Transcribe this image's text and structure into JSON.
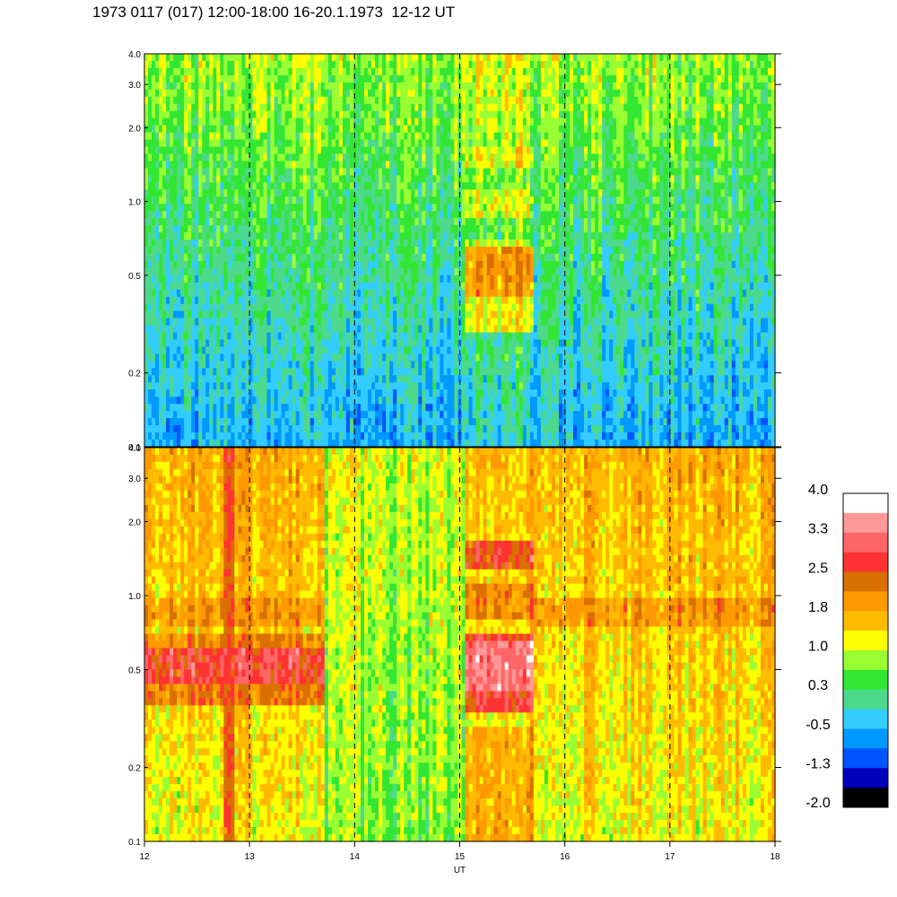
{
  "title": "1973 0117 (017) 12:00-18:00 16-20.1.1973  12-12 UT",
  "chart_data": {
    "type": "heatmap",
    "x_label": "UT",
    "x_ticks": [
      "12",
      "13",
      "14",
      "15",
      "16",
      "17",
      "18"
    ],
    "xlim": [
      12,
      18
    ],
    "dashed_vertical_lines_at": [
      13,
      14,
      15,
      16,
      17
    ],
    "y_scale": "log",
    "ylim": [
      0.1,
      4.0
    ],
    "y_ticks": [
      "0.1",
      "0.2",
      "0.5",
      "1.0",
      "2.0",
      "3.0",
      "4.0"
    ],
    "y_tick_values": [
      0.1,
      0.2,
      0.5,
      1.0,
      2.0,
      3.0,
      4.0
    ],
    "panels": [
      {
        "name": "upper",
        "background_level": "low (blue-green)",
        "features": [
          {
            "x_start": 15.05,
            "x_end": 15.7,
            "y_band": [
              0.3,
              1.7
            ],
            "note": "bright bands at ~0.5, ~1.0, ~1.5"
          }
        ]
      },
      {
        "name": "lower",
        "background_level": "high (yellow-orange)",
        "features": [
          {
            "x_start": 12.0,
            "x_end": 13.7,
            "y_band": [
              0.35,
              0.95
            ],
            "note": "red band centered ~0.5"
          },
          {
            "x_start": 12.75,
            "x_end": 12.85,
            "y_band": [
              0.1,
              4.0
            ],
            "note": "vertical red stripe"
          },
          {
            "x_start": 15.05,
            "x_end": 15.7,
            "y_band": [
              0.35,
              1.6
            ],
            "note": "pink/red band centered ~0.45"
          },
          {
            "x_start": 15.7,
            "x_end": 18.0,
            "y_band": [
              0.75,
              0.95
            ],
            "note": "orange band"
          }
        ]
      }
    ],
    "colorbar": {
      "labels": [
        "4.0",
        "3.3",
        "2.5",
        "1.8",
        "1.0",
        "0.3",
        "-0.5",
        "-1.3",
        "-2.0"
      ],
      "values": [
        4.0,
        3.3,
        2.5,
        1.8,
        1.0,
        0.3,
        -0.5,
        -1.3,
        -2.0
      ],
      "colors_top_to_bottom": [
        "#ffffff",
        "#ff9999",
        "#ff6666",
        "#ff3333",
        "#d97000",
        "#ff9900",
        "#ffbb00",
        "#ffff00",
        "#99ff33",
        "#33e633",
        "#4dd98c",
        "#33ccff",
        "#0099ff",
        "#0055ff",
        "#0000bb",
        "#000000"
      ]
    }
  }
}
